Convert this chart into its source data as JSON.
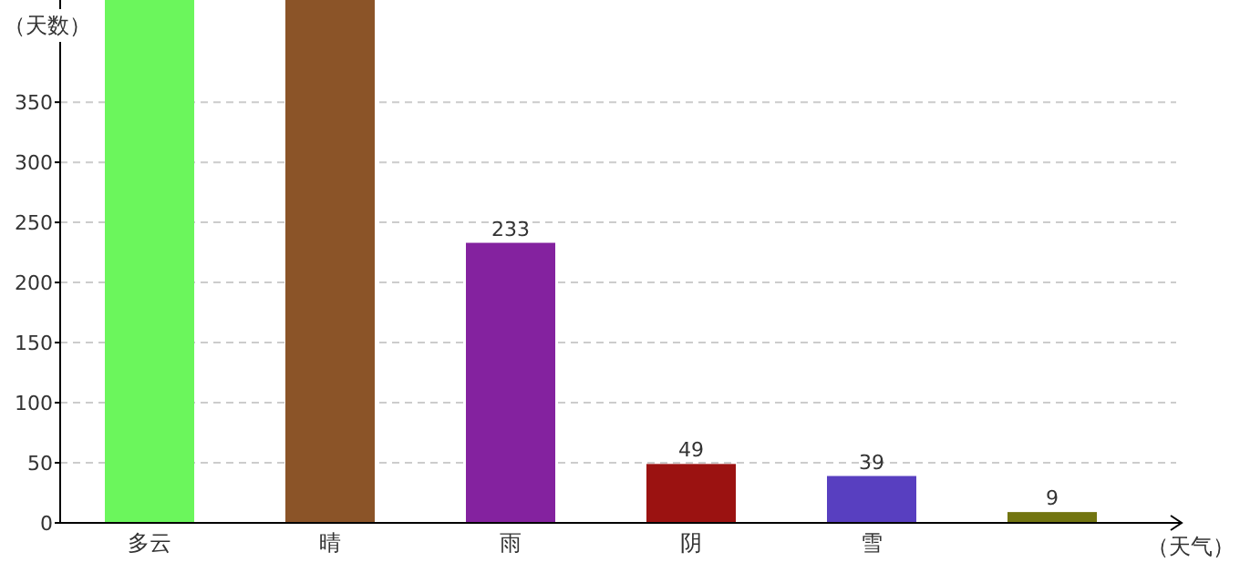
{
  "chart_data": {
    "type": "bar",
    "ylabel": "（天数）",
    "xlabel": "（天气）",
    "categories": [
      "多云",
      "晴",
      "雨",
      "阴",
      "雪",
      null
    ],
    "values": [
      435,
      435,
      233,
      49,
      39,
      9
    ],
    "colors": [
      "#6bf65c",
      "#8b5428",
      "#84229f",
      "#9b1211",
      "#583fc0",
      "#727510"
    ],
    "ylim": [
      0,
      435
    ],
    "yticks": [
      0,
      50,
      100,
      150,
      200,
      250,
      300,
      350
    ],
    "grid": "y",
    "value_labels": [
      null,
      null,
      "233",
      "49",
      "39",
      "9"
    ]
  }
}
